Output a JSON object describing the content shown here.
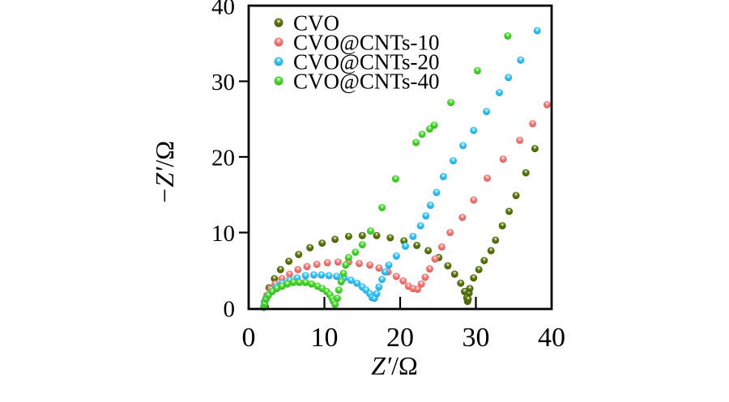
{
  "chart_data": {
    "type": "scatter",
    "subtype": "nyquist-eis",
    "title": "",
    "xlabel": "Z′/Ω",
    "ylabel": "−Z′/Ω",
    "xlim": [
      0,
      40
    ],
    "ylim": [
      0,
      40
    ],
    "x_ticks": [
      0,
      10,
      20,
      30,
      40
    ],
    "y_ticks": [
      0,
      10,
      20,
      30,
      40
    ],
    "grid": false,
    "legend_position": "top-left-inside",
    "marker": "sphere",
    "axis_color": "#000000",
    "series": [
      {
        "name": "CVO",
        "color": "#5d7a10",
        "color_dark": "#3c5204",
        "points": [
          [
            2.2,
            0.2
          ],
          [
            2.3,
            1.3
          ],
          [
            2.7,
            2.7
          ],
          [
            3.4,
            3.9
          ],
          [
            4.2,
            5.1
          ],
          [
            5.3,
            6.2
          ],
          [
            6.6,
            7.1
          ],
          [
            8.1,
            8.0
          ],
          [
            9.7,
            8.6
          ],
          [
            11.4,
            9.1
          ],
          [
            13.2,
            9.5
          ],
          [
            15.0,
            9.6
          ],
          [
            16.9,
            9.6
          ],
          [
            18.7,
            9.3
          ],
          [
            20.5,
            8.9
          ],
          [
            22.2,
            8.3
          ],
          [
            23.7,
            7.6
          ],
          [
            25.1,
            6.7
          ],
          [
            26.3,
            5.6
          ],
          [
            27.2,
            4.5
          ],
          [
            28.0,
            3.3
          ],
          [
            28.5,
            2.2
          ],
          [
            28.8,
            1.4
          ],
          [
            28.9,
            0.9
          ],
          [
            29.0,
            1.2
          ],
          [
            29.1,
            2.0
          ],
          [
            29.2,
            2.6
          ],
          [
            29.7,
            4.0
          ],
          [
            30.4,
            5.1
          ],
          [
            31.1,
            6.3
          ],
          [
            32.0,
            7.6
          ],
          [
            32.6,
            9.0
          ],
          [
            33.5,
            10.9
          ],
          [
            34.4,
            12.8
          ],
          [
            35.3,
            14.9
          ],
          [
            36.6,
            17.9
          ],
          [
            37.8,
            21.1
          ]
        ]
      },
      {
        "name": "CVO@CNTs-10",
        "color": "#f5807d",
        "color_dark": "#cf4f4f",
        "points": [
          [
            2.0,
            0.2
          ],
          [
            2.1,
            0.9
          ],
          [
            2.4,
            1.7
          ],
          [
            2.9,
            2.5
          ],
          [
            3.5,
            3.2
          ],
          [
            4.4,
            3.9
          ],
          [
            5.4,
            4.5
          ],
          [
            6.5,
            5.1
          ],
          [
            7.7,
            5.5
          ],
          [
            9.0,
            5.8
          ],
          [
            10.4,
            6.0
          ],
          [
            11.8,
            6.1
          ],
          [
            13.2,
            6.1
          ],
          [
            14.6,
            5.9
          ],
          [
            16.0,
            5.7
          ],
          [
            17.2,
            5.3
          ],
          [
            18.4,
            4.8
          ],
          [
            19.5,
            4.2
          ],
          [
            20.4,
            3.6
          ],
          [
            21.1,
            2.9
          ],
          [
            21.7,
            2.6
          ],
          [
            22.3,
            2.5
          ],
          [
            22.8,
            3.2
          ],
          [
            23.3,
            4.1
          ],
          [
            23.9,
            5.2
          ],
          [
            24.6,
            6.5
          ],
          [
            25.5,
            8.1
          ],
          [
            26.6,
            10.0
          ],
          [
            28.2,
            12.0
          ],
          [
            29.7,
            14.3
          ],
          [
            31.5,
            17.2
          ],
          [
            33.6,
            19.7
          ],
          [
            35.8,
            22.2
          ],
          [
            37.5,
            24.4
          ],
          [
            39.4,
            26.9
          ]
        ]
      },
      {
        "name": "CVO@CNTs-20",
        "color": "#41c8f6",
        "color_dark": "#1492cc",
        "points": [
          [
            2.0,
            0.2
          ],
          [
            2.1,
            0.8
          ],
          [
            2.4,
            1.5
          ],
          [
            3.0,
            2.2
          ],
          [
            3.6,
            2.8
          ],
          [
            4.4,
            3.3
          ],
          [
            5.4,
            3.7
          ],
          [
            6.4,
            4.0
          ],
          [
            7.5,
            4.3
          ],
          [
            8.6,
            4.4
          ],
          [
            9.6,
            4.4
          ],
          [
            10.6,
            4.3
          ],
          [
            11.6,
            4.2
          ],
          [
            12.6,
            4.0
          ],
          [
            13.5,
            3.7
          ],
          [
            14.3,
            3.3
          ],
          [
            15.0,
            2.8
          ],
          [
            15.5,
            2.4
          ],
          [
            16.0,
            1.9
          ],
          [
            16.3,
            1.4
          ],
          [
            16.6,
            1.3
          ],
          [
            16.9,
            1.9
          ],
          [
            17.2,
            2.8
          ],
          [
            17.6,
            3.8
          ],
          [
            18.0,
            4.8
          ],
          [
            18.5,
            5.7
          ],
          [
            19.5,
            6.9
          ],
          [
            20.7,
            8.2
          ],
          [
            21.7,
            9.5
          ],
          [
            22.7,
            10.9
          ],
          [
            23.4,
            12.2
          ],
          [
            24.0,
            13.6
          ],
          [
            24.8,
            15.3
          ],
          [
            25.7,
            17.4
          ],
          [
            27.0,
            19.5
          ],
          [
            28.3,
            21.5
          ],
          [
            29.7,
            23.5
          ],
          [
            31.4,
            26.0
          ],
          [
            33.1,
            28.5
          ],
          [
            34.3,
            30.5
          ],
          [
            35.9,
            32.8
          ],
          [
            38.1,
            36.7
          ]
        ]
      },
      {
        "name": "CVO@CNTs-40",
        "color": "#4edc35",
        "color_dark": "#2aa315",
        "points": [
          [
            2.0,
            0.1
          ],
          [
            2.1,
            0.6
          ],
          [
            2.3,
            1.2
          ],
          [
            2.6,
            1.7
          ],
          [
            3.1,
            2.2
          ],
          [
            3.7,
            2.6
          ],
          [
            4.4,
            2.9
          ],
          [
            5.1,
            3.2
          ],
          [
            5.9,
            3.4
          ],
          [
            6.7,
            3.4
          ],
          [
            7.5,
            3.4
          ],
          [
            8.3,
            3.2
          ],
          [
            9.1,
            2.9
          ],
          [
            9.7,
            2.6
          ],
          [
            10.3,
            2.2
          ],
          [
            10.7,
            1.8
          ],
          [
            11.0,
            1.3
          ],
          [
            11.2,
            0.9
          ],
          [
            11.4,
            0.5
          ],
          [
            11.7,
            1.3
          ],
          [
            11.9,
            2.4
          ],
          [
            12.2,
            3.5
          ],
          [
            12.5,
            4.6
          ],
          [
            12.8,
            5.7
          ],
          [
            13.2,
            6.7
          ],
          [
            14.1,
            7.4
          ],
          [
            15.0,
            8.4
          ],
          [
            16.1,
            10.2
          ],
          [
            17.6,
            13.3
          ],
          [
            19.4,
            17.1
          ],
          [
            22.1,
            21.9
          ],
          [
            22.9,
            23.0
          ],
          [
            23.9,
            23.7
          ],
          [
            24.5,
            24.2
          ],
          [
            26.7,
            27.2
          ],
          [
            30.2,
            31.4
          ],
          [
            34.2,
            36.0
          ]
        ]
      }
    ]
  },
  "layout_text": {
    "legend_items": [
      "CVO",
      "CVO@CNTs-10",
      "CVO@CNTs-20",
      "CVO@CNTs-40"
    ]
  }
}
